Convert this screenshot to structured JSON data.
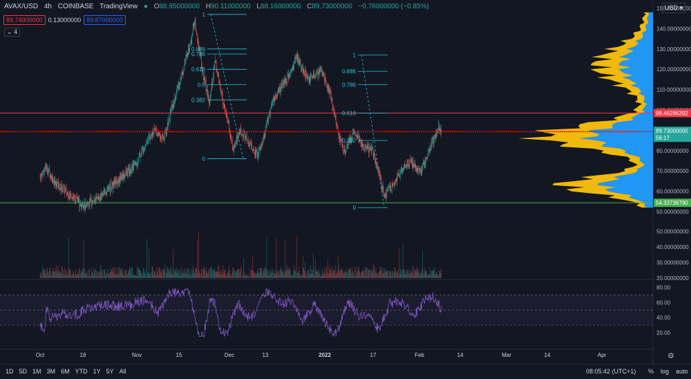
{
  "header": {
    "symbol": "AVAX/USD",
    "interval": "4h",
    "exchange": "COINBASE",
    "source": "TradingView",
    "open_label": "O",
    "open": "88.95000000",
    "high_label": "H",
    "high": "90.11000000",
    "low_label": "L",
    "low": "88.16000000",
    "close_label": "C",
    "close": "89.73000000",
    "change": "−0.76000000 (−0.85%)",
    "bid": "89.74000000",
    "spread": "0.13000000",
    "ask": "89.87000000",
    "indicator_count": "4"
  },
  "currency_button": "USD",
  "bottom_bar": {
    "timeframes": [
      "1D",
      "5D",
      "1M",
      "3M",
      "6M",
      "YTD",
      "1Y",
      "5Y",
      "All"
    ],
    "clock": "08:05:42 (UTC+1)",
    "options": [
      "%",
      "log",
      "auto"
    ]
  },
  "chart_data": [
    {
      "type": "candlestick",
      "ylim": [
        50,
        150
      ],
      "y_tick_labels": [
        "50.00000000",
        "60.00000000",
        "70.00000000",
        "80.00000000",
        "90.00000000",
        "100.00000000",
        "110.00000000",
        "120.00000000",
        "130.00000000",
        "140.00000000",
        "150.00000000"
      ],
      "x_tick_labels": [
        "Oct",
        "18",
        "Nov",
        "15",
        "Dec",
        "13",
        "2022",
        "17",
        "Feb",
        "14",
        "Mar",
        "14",
        "Apr"
      ],
      "path_points": [
        [
          "Oct 1",
          67
        ],
        [
          "Oct 3",
          72
        ],
        [
          "Oct 6",
          64
        ],
        [
          "Oct 12",
          57
        ],
        [
          "Oct 15",
          53
        ],
        [
          "Oct 20",
          56
        ],
        [
          "Oct 25",
          63
        ],
        [
          "Oct 29",
          68
        ],
        [
          "Nov 2",
          74
        ],
        [
          "Nov 5",
          84
        ],
        [
          "Nov 8",
          90
        ],
        [
          "Nov 11",
          86
        ],
        [
          "Nov 14",
          103
        ],
        [
          "Nov 17",
          118
        ],
        [
          "Nov 20",
          135
        ],
        [
          "Nov 21",
          144
        ],
        [
          "Nov 24",
          118
        ],
        [
          "Nov 26",
          104
        ],
        [
          "Nov 28",
          124
        ],
        [
          "Nov 30",
          108
        ],
        [
          "Dec 2",
          96
        ],
        [
          "Dec 4",
          80
        ],
        [
          "Dec 6",
          90
        ],
        [
          "Dec 9",
          84
        ],
        [
          "Dec 12",
          78
        ],
        [
          "Dec 14",
          86
        ],
        [
          "Dec 17",
          104
        ],
        [
          "Dec 20",
          112
        ],
        [
          "Dec 23",
          118
        ],
        [
          "Dec 25",
          126
        ],
        [
          "Dec 29",
          114
        ],
        [
          "Jan 2",
          120
        ],
        [
          "Jan 5",
          108
        ],
        [
          "Jan 8",
          86
        ],
        [
          "Jan 10",
          80
        ],
        [
          "Jan 13",
          90
        ],
        [
          "Jan 16",
          82
        ],
        [
          "Jan 19",
          80
        ],
        [
          "Jan 21",
          70
        ],
        [
          "Jan 23",
          58
        ],
        [
          "Jan 26",
          63
        ],
        [
          "Jan 29",
          72
        ],
        [
          "Feb 1",
          74
        ],
        [
          "Feb 4",
          70
        ],
        [
          "Feb 6",
          76
        ],
        [
          "Feb 8",
          84
        ],
        [
          "Feb 10",
          92
        ],
        [
          "Feb 11",
          89.73
        ]
      ],
      "horizontal_lines": [
        {
          "value": 98.46286292,
          "label": "98.46286292",
          "color": "#f23645"
        },
        {
          "value": 89.3388125,
          "label": "89.33881250",
          "color": "#ff0000"
        },
        {
          "value": 54.3373679,
          "label": "54.33736790",
          "color": "#4caf50"
        }
      ],
      "last_price": {
        "value": 89.73,
        "label": "89.73000000",
        "countdown": "56:17",
        "color": "#26a69a"
      },
      "fib_retracements": [
        {
          "levels": [
            "1",
            "0.886",
            "0.786",
            "0.618",
            "0.5",
            "0.382",
            "0"
          ],
          "values": [
            147,
            130,
            127.5,
            120,
            112.5,
            105,
            76
          ]
        },
        {
          "levels": [
            "1",
            "0.886",
            "0.786",
            "0.618",
            "0.382",
            "0"
          ],
          "values": [
            127,
            119,
            112.5,
            98.5,
            85,
            52
          ]
        }
      ],
      "volume_profile": {
        "up_color": "#2196f3",
        "down_color": "#f0b90b"
      }
    },
    {
      "type": "bar",
      "series": "volume",
      "ylim": [
        20,
        60
      ],
      "y_tick_labels": [
        "20.00000000",
        "30.00000000",
        "40.00000000",
        "50.00000000"
      ]
    },
    {
      "type": "line",
      "series": "RSI",
      "ylim": [
        10,
        85
      ],
      "y_tick_labels": [
        "20.00",
        "40.00",
        "60.00",
        "80.00"
      ],
      "bands": [
        30,
        70
      ],
      "line_color": "#7e57c2"
    }
  ]
}
